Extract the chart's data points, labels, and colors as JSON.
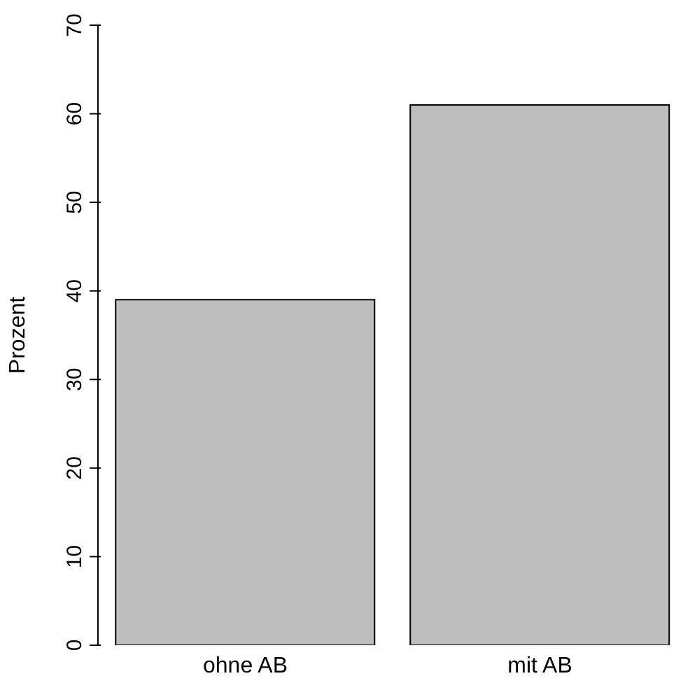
{
  "chart_data": {
    "type": "bar",
    "ylabel": "Prozent",
    "categories": [
      "ohne AB",
      "mit AB"
    ],
    "values": [
      39,
      61
    ],
    "color": "#bebebe",
    "ylim": [
      0,
      70
    ],
    "yticks": [
      0,
      10,
      20,
      30,
      40,
      50,
      60,
      70
    ],
    "grid": false
  }
}
